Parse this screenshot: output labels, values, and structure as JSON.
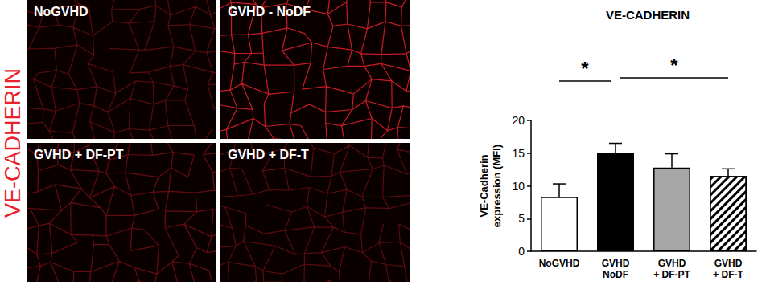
{
  "chart_data": {
    "type": "bar",
    "title": "VE-CADHERIN",
    "y_label": "VE-Cadherin\nexpression (MFI)",
    "categories": [
      "NoGVHD",
      "GVHD\nNoDF",
      "GVHD\n+ DF-PT",
      "GVHD\n+ DF-T"
    ],
    "values": [
      8.3,
      15.1,
      12.8,
      11.5
    ],
    "error": [
      2.0,
      1.4,
      2.1,
      1.1
    ],
    "colors": [
      "#ffffff",
      "#000000",
      "#a6a6a6",
      "#ffffff"
    ],
    "ylim": [
      0,
      20
    ],
    "yticks": [
      0,
      5,
      10,
      15,
      20
    ],
    "grid": false,
    "significance": [
      {
        "between": [
          0,
          1
        ],
        "text": "*"
      },
      {
        "between": [
          1,
          3
        ],
        "text": "*"
      }
    ]
  },
  "image_panels": {
    "stain": "VE-CADHERIN",
    "stain_color": "#e8212b",
    "labels": [
      "NoGVHD",
      "GVHD - NoDF",
      "GVHD + DF-PT",
      "GVHD + DF-T"
    ]
  }
}
